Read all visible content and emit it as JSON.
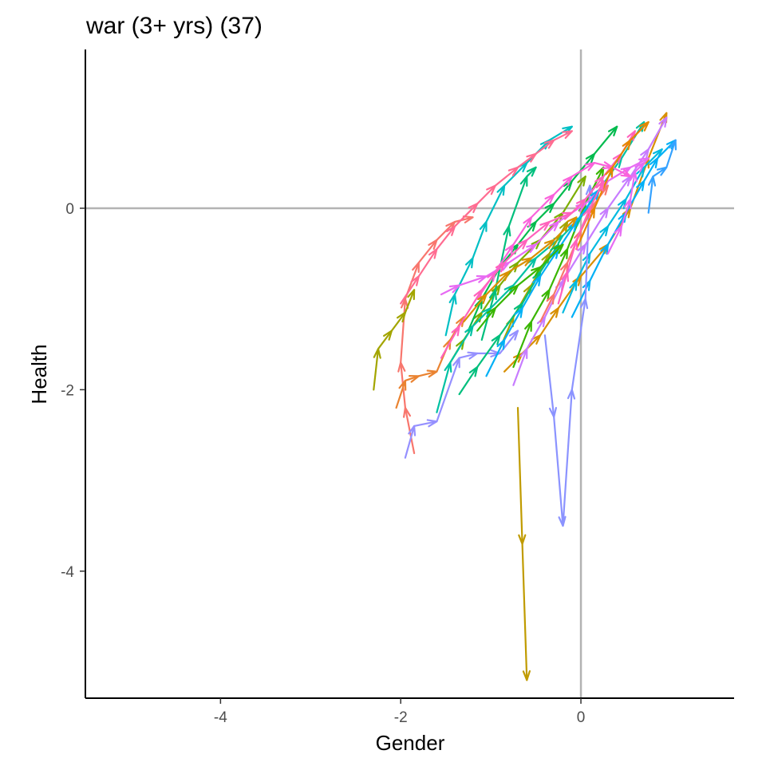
{
  "chart_data": {
    "type": "line",
    "title": "war (3+ yrs) (37)",
    "xlabel": "Gender",
    "ylabel": "Health",
    "xlim": [
      -5.5,
      1.7
    ],
    "ylim": [
      -5.4,
      1.75
    ],
    "x_ticks": [
      -4,
      -2,
      0
    ],
    "x_tick_labels": [
      "-4",
      "-2",
      "0"
    ],
    "y_ticks": [
      -4,
      -2,
      0
    ],
    "y_tick_labels": [
      "-4",
      "-2",
      "0"
    ],
    "reference_lines": {
      "x": 0,
      "y": 0,
      "color": "#b3b3b3"
    },
    "grid": false,
    "legend": "none",
    "marker": "arrow",
    "series": [
      {
        "color": "#F8766D",
        "x": [
          -1.85,
          -1.95,
          -2.0,
          -1.95,
          -1.8,
          -1.6,
          -1.4,
          -1.2
        ],
        "y": [
          -2.7,
          -2.2,
          -1.7,
          -1.0,
          -0.6,
          -0.35,
          -0.15,
          -0.1
        ]
      },
      {
        "color": "#EA8331",
        "x": [
          -2.05,
          -1.95,
          -1.8,
          -1.6,
          -1.45,
          -1.3
        ],
        "y": [
          -2.2,
          -1.9,
          -1.85,
          -1.8,
          -1.45,
          -1.2
        ]
      },
      {
        "color": "#D89000",
        "x": [
          -0.85,
          -0.65,
          -0.45,
          -0.25,
          0.0,
          0.3,
          0.55,
          0.75,
          0.95
        ],
        "y": [
          -1.8,
          -1.6,
          -1.4,
          -1.1,
          -0.75,
          -0.4,
          0.0,
          0.55,
          1.05
        ]
      },
      {
        "color": "#C09B00",
        "x": [
          -0.7,
          -0.65,
          -0.6
        ],
        "y": [
          -2.2,
          -3.7,
          -5.2
        ]
      },
      {
        "color": "#A3A500",
        "x": [
          -2.3,
          -2.25,
          -2.1,
          -1.95,
          -1.85
        ],
        "y": [
          -2.0,
          -1.55,
          -1.35,
          -1.15,
          -0.9
        ]
      },
      {
        "color": "#7CAE00",
        "x": [
          -1.45,
          -1.3,
          -1.1,
          -0.9,
          -0.7,
          -0.45,
          -0.2,
          0.05
        ],
        "y": [
          -1.7,
          -1.45,
          -1.15,
          -0.85,
          -0.6,
          -0.35,
          -0.05,
          0.35
        ]
      },
      {
        "color": "#39B600",
        "x": [
          -0.75,
          -0.55,
          -0.35,
          -0.15,
          0.05,
          0.25
        ],
        "y": [
          -1.75,
          -1.25,
          -0.9,
          -0.45,
          0.05,
          0.45
        ]
      },
      {
        "color": "#00BB4E",
        "x": [
          -1.25,
          -1.1,
          -0.9,
          -0.7,
          -0.5,
          -0.3,
          -0.1,
          0.15,
          0.4
        ],
        "y": [
          -1.35,
          -1.0,
          -0.65,
          -0.4,
          -0.15,
          0.05,
          0.3,
          0.6,
          0.9
        ]
      },
      {
        "color": "#00BF7D",
        "x": [
          -1.1,
          -0.95,
          -0.8,
          -0.6,
          -0.5
        ],
        "y": [
          -1.45,
          -0.9,
          -0.2,
          0.35,
          0.45
        ]
      },
      {
        "color": "#00C1A3",
        "x": [
          -1.6,
          -1.45,
          -1.2,
          -1.0,
          -0.75,
          -0.5,
          -0.2,
          0.0,
          0.2,
          0.45,
          0.7
        ],
        "y": [
          -2.25,
          -1.7,
          -1.3,
          -1.1,
          -0.85,
          -0.55,
          -0.3,
          -0.1,
          0.2,
          0.55,
          0.95
        ]
      },
      {
        "color": "#00BFC4",
        "x": [
          -1.5,
          -1.4,
          -1.2,
          -1.05,
          -0.85,
          -0.6,
          -0.35,
          -0.1
        ],
        "y": [
          -1.4,
          -0.95,
          -0.55,
          -0.15,
          0.25,
          0.5,
          0.75,
          0.9
        ]
      },
      {
        "color": "#00BAE0",
        "x": [
          -0.2,
          -0.05,
          0.1,
          0.3,
          0.5,
          0.7,
          0.9
        ],
        "y": [
          -1.15,
          -0.8,
          -0.5,
          -0.2,
          0.1,
          0.45,
          0.65
        ]
      },
      {
        "color": "#00B0F6",
        "x": [
          -0.1,
          0.1,
          0.3,
          0.5,
          0.7,
          0.85,
          1.05
        ],
        "y": [
          -1.2,
          -0.8,
          -0.4,
          -0.05,
          0.3,
          0.55,
          0.75
        ]
      },
      {
        "color": "#35A2FF",
        "x": [
          0.75,
          0.8,
          0.95,
          1.05
        ],
        "y": [
          -0.05,
          0.35,
          0.45,
          0.75
        ]
      },
      {
        "color": "#9590FF",
        "x": [
          -1.95,
          -1.85,
          -1.6,
          -1.35,
          -1.15,
          -0.9,
          -0.7
        ],
        "y": [
          -2.75,
          -2.4,
          -2.35,
          -1.65,
          -1.6,
          -1.6,
          -1.35
        ]
      },
      {
        "color": "#8B93FF",
        "x": [
          -0.4,
          -0.3,
          -0.2,
          -0.1,
          0.05,
          0.1
        ],
        "y": [
          -1.4,
          -2.3,
          -3.5,
          -2.0,
          -1.0,
          0.25
        ]
      },
      {
        "color": "#C77CFF",
        "x": [
          -0.75,
          -0.6,
          -0.4,
          -0.2,
          0.05,
          0.3,
          0.55,
          0.75,
          0.95
        ],
        "y": [
          -1.95,
          -1.55,
          -1.2,
          -0.8,
          -0.4,
          0.0,
          0.35,
          0.65,
          1.0
        ]
      },
      {
        "color": "#E76BF3",
        "x": [
          -1.55,
          -1.35,
          -1.05,
          -0.8,
          -0.5,
          -0.25,
          0.05,
          0.3,
          0.55,
          0.75
        ],
        "y": [
          -0.95,
          -0.85,
          -0.75,
          -0.6,
          -0.4,
          -0.15,
          0.05,
          0.3,
          0.45,
          0.55
        ]
      },
      {
        "color": "#FA62DB",
        "x": [
          -1.15,
          -0.95,
          -0.75,
          -0.55,
          -0.3,
          -0.1,
          0.15,
          0.35,
          0.55
        ],
        "y": [
          -1.0,
          -0.7,
          -0.4,
          -0.1,
          0.15,
          0.35,
          0.5,
          0.45,
          0.35
        ]
      },
      {
        "color": "#FF62BC",
        "x": [
          -1.55,
          -1.35,
          -1.1,
          -0.85,
          -0.6,
          -0.35,
          -0.1,
          0.05,
          0.25,
          0.45,
          0.6
        ],
        "y": [
          -1.65,
          -1.3,
          -0.9,
          -0.6,
          -0.35,
          -0.15,
          -0.05,
          0.1,
          0.35,
          0.6,
          0.85
        ]
      },
      {
        "color": "#FF6C91",
        "x": [
          -2.0,
          -1.8,
          -1.6,
          -1.4,
          -1.15,
          -0.95,
          -0.7,
          -0.5,
          -0.3,
          -0.1
        ],
        "y": [
          -1.05,
          -0.75,
          -0.45,
          -0.2,
          0.05,
          0.25,
          0.45,
          0.6,
          0.75,
          0.85
        ]
      },
      {
        "color": "#F8766D",
        "x": [
          -0.45,
          -0.3,
          -0.15,
          0.0,
          0.15,
          0.3
        ],
        "y": [
          -1.25,
          -0.95,
          -0.6,
          -0.25,
          0.05,
          0.25
        ]
      },
      {
        "color": "#E58700",
        "x": [
          -0.05,
          0.15,
          0.35,
          0.55,
          0.75
        ],
        "y": [
          -0.45,
          0.0,
          0.45,
          0.75,
          0.95
        ]
      },
      {
        "color": "#A3A500",
        "x": [
          -0.9,
          -0.75,
          -0.55,
          -0.35,
          -0.15
        ],
        "y": [
          -1.55,
          -1.2,
          -0.85,
          -0.5,
          -0.15
        ]
      },
      {
        "color": "#00BF7D",
        "x": [
          -1.35,
          -1.15,
          -0.9,
          -0.65,
          -0.45,
          -0.25
        ],
        "y": [
          -2.05,
          -1.75,
          -1.4,
          -1.05,
          -0.7,
          -0.4
        ]
      },
      {
        "color": "#00B0F6",
        "x": [
          -1.05,
          -0.85,
          -0.65,
          -0.45,
          -0.25,
          -0.05,
          0.2
        ],
        "y": [
          -1.85,
          -1.45,
          -1.1,
          -0.75,
          -0.45,
          -0.15,
          0.2
        ]
      },
      {
        "color": "#E76BF3",
        "x": [
          0.3,
          0.45,
          0.55,
          0.6,
          0.7
        ],
        "y": [
          -0.5,
          -0.2,
          0.1,
          0.4,
          0.5
        ]
      },
      {
        "color": "#FF62BC",
        "x": [
          -0.25,
          -0.15,
          -0.05,
          0.1,
          0.25
        ],
        "y": [
          -1.05,
          -0.7,
          -0.35,
          0.0,
          0.3
        ]
      },
      {
        "color": "#39B600",
        "x": [
          -1.15,
          -0.95,
          -0.7,
          -0.45,
          -0.2
        ],
        "y": [
          -1.35,
          -1.1,
          -0.85,
          -0.65,
          -0.4
        ]
      },
      {
        "color": "#D89000",
        "x": [
          -1.3,
          -1.05,
          -0.8,
          -0.55,
          -0.3,
          -0.05
        ],
        "y": [
          -1.25,
          -0.95,
          -0.7,
          -0.55,
          -0.35,
          -0.1
        ]
      }
    ]
  }
}
